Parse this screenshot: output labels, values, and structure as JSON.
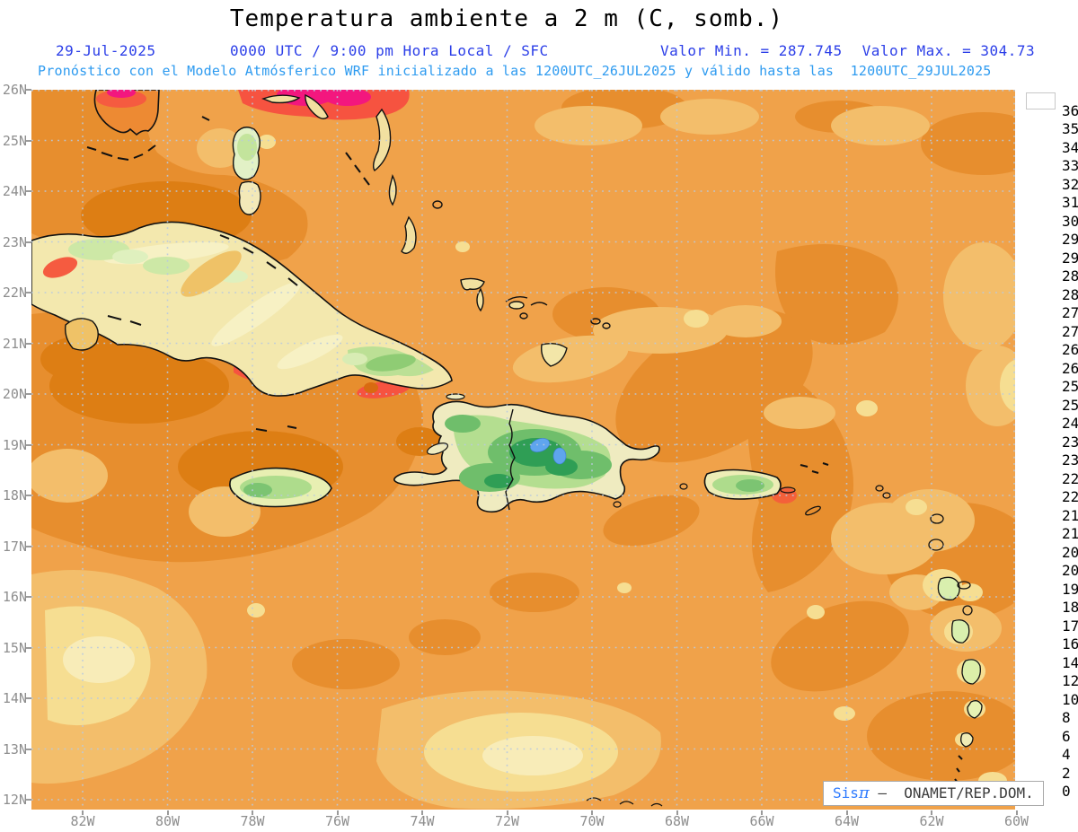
{
  "header": {
    "title": "Temperatura ambiente a 2 m (C, somb.)",
    "date": "29-Jul-2025",
    "time_line": "0000 UTC / 9:00 pm Hora Local / SFC",
    "valor_min": "Valor Min. = 287.745",
    "valor_max": "Valor Max. = 304.73",
    "forecast_line": "Pronóstico con el Modelo Atmósferico WRF inicializado a las 1200UTC_26JUL2025 y válido hasta las  1200UTC_29JUL2025"
  },
  "map": {
    "lat_labels": [
      "26N",
      "25N",
      "24N",
      "23N",
      "22N",
      "21N",
      "20N",
      "19N",
      "18N",
      "17N",
      "16N",
      "15N",
      "14N",
      "13N",
      "12N"
    ],
    "lon_labels": [
      "82W",
      "80W",
      "78W",
      "76W",
      "74W",
      "72W",
      "70W",
      "68W",
      "66W",
      "64W",
      "62W",
      "60W"
    ]
  },
  "colorbar": {
    "cells": [
      {
        "color": "#FE0000",
        "label": "36"
      },
      {
        "color": "#E00A0E",
        "label": "35"
      },
      {
        "color": "#BE1014",
        "label": "34"
      },
      {
        "color": "#9E1114",
        "label": "33"
      },
      {
        "color": "#870D10",
        "label": "32"
      },
      {
        "color": "#A60D3E",
        "label": "31.5"
      },
      {
        "color": "#EF1380",
        "label": "30.7"
      },
      {
        "color": "#F75B45",
        "label": "29.7"
      },
      {
        "color": "#E07F10",
        "label": "29"
      },
      {
        "color": "#EC9C42",
        "label": "28.5"
      },
      {
        "color": "#EDA44C",
        "label": "28"
      },
      {
        "color": "#EFB156",
        "label": "27.5"
      },
      {
        "color": "#F0BE62",
        "label": "27"
      },
      {
        "color": "#F0D074",
        "label": "26.5"
      },
      {
        "color": "#EDDE89",
        "label": "26"
      },
      {
        "color": "#E9ECA9",
        "label": "25.5"
      },
      {
        "color": "#DDEDB2",
        "label": "25"
      },
      {
        "color": "#C9E7A4",
        "label": "24"
      },
      {
        "color": "#B5E095",
        "label": "23.5"
      },
      {
        "color": "#A3D985",
        "label": "23"
      },
      {
        "color": "#93D27D",
        "label": "22.5"
      },
      {
        "color": "#84CB78",
        "label": "22"
      },
      {
        "color": "#76C472",
        "label": "21.5"
      },
      {
        "color": "#68BD6D",
        "label": "21"
      },
      {
        "color": "#5AB568",
        "label": "20.5"
      },
      {
        "color": "#4AAD60",
        "label": "20"
      },
      {
        "color": "#39A55A",
        "label": "19"
      },
      {
        "color": "#279C51",
        "label": "18"
      },
      {
        "color": "#129347",
        "label": "17"
      },
      {
        "color": "#57A3F3",
        "label": "16"
      },
      {
        "color": "#2F81EA",
        "label": "14"
      },
      {
        "color": "#2463CC",
        "label": "12"
      },
      {
        "color": "#150C7D",
        "label": "10"
      },
      {
        "color": "#392F9F",
        "label": "8"
      },
      {
        "color": "#4A40B1",
        "label": "6"
      },
      {
        "color": "#5D53C3",
        "label": "4"
      },
      {
        "color": "#9C92EF",
        "label": "2"
      },
      {
        "color": "#DAD7F7",
        "label": "0"
      },
      {
        "color": "#FFFFFF",
        "label": null
      }
    ]
  },
  "attribution": {
    "brand": "Sis",
    "pi": "π",
    "rest": " –  ONAMET/REP.DOM."
  },
  "palette": {
    "ocean_base": "#F0A24A",
    "ocean_warm": "#E78E2E",
    "ocean_warmer": "#DD7E14",
    "ocean_tan": "#F3BE6B",
    "ocean_pale": "#F6DE92",
    "ocean_cream": "#F8ECB8",
    "hot_red": "#F65340",
    "hot_pink": "#F3177E",
    "land_cream": "#F3E8AE",
    "land_green": "#B4DE90",
    "land_green_dark": "#2F9E55",
    "cool_blue_spot": "#5FA5EE",
    "coast": "#111111",
    "grid": "#B9CADF",
    "header_blue": "#2B3EE8",
    "header_cyan": "#2E9BF0"
  }
}
